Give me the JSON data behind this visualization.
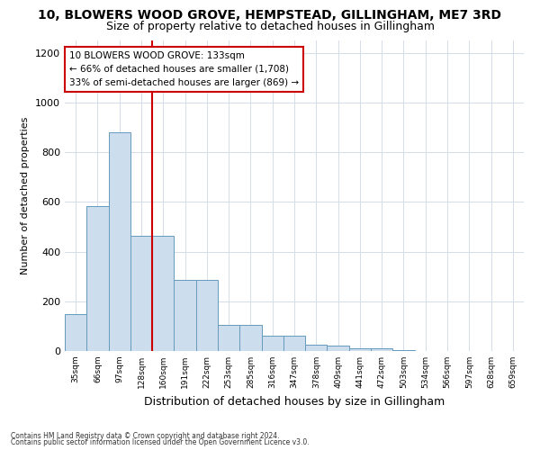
{
  "title1": "10, BLOWERS WOOD GROVE, HEMPSTEAD, GILLINGHAM, ME7 3RD",
  "title2": "Size of property relative to detached houses in Gillingham",
  "xlabel": "Distribution of detached houses by size in Gillingham",
  "ylabel": "Number of detached properties",
  "bar_labels": [
    "35sqm",
    "66sqm",
    "97sqm",
    "128sqm",
    "160sqm",
    "191sqm",
    "222sqm",
    "253sqm",
    "285sqm",
    "316sqm",
    "347sqm",
    "378sqm",
    "409sqm",
    "441sqm",
    "472sqm",
    "503sqm",
    "534sqm",
    "566sqm",
    "597sqm",
    "628sqm",
    "659sqm"
  ],
  "bar_values": [
    150,
    585,
    880,
    462,
    465,
    285,
    285,
    105,
    105,
    62,
    62,
    27,
    20,
    10,
    10,
    5,
    0,
    0,
    0,
    0,
    0
  ],
  "bar_color": "#ccdded",
  "bar_edge_color": "#6699bb",
  "property_line_x": 3.5,
  "annotation_line1": "10 BLOWERS WOOD GROVE: 133sqm",
  "annotation_line2": "← 66% of detached houses are smaller (1,708)",
  "annotation_line3": "33% of semi-detached houses are larger (869) →",
  "annotation_box_color": "#ffffff",
  "annotation_box_edge": "#cc0000",
  "red_line_color": "#cc0000",
  "ylim": [
    0,
    1250
  ],
  "yticks": [
    0,
    200,
    400,
    600,
    800,
    1000,
    1200
  ],
  "footer1": "Contains HM Land Registry data © Crown copyright and database right 2024.",
  "footer2": "Contains public sector information licensed under the Open Government Licence v3.0.",
  "bg_color": "#ffffff",
  "grid_color": "#d4dde8",
  "title1_fontsize": 10,
  "title2_fontsize": 9,
  "ylabel_fontsize": 8,
  "xlabel_fontsize": 9
}
